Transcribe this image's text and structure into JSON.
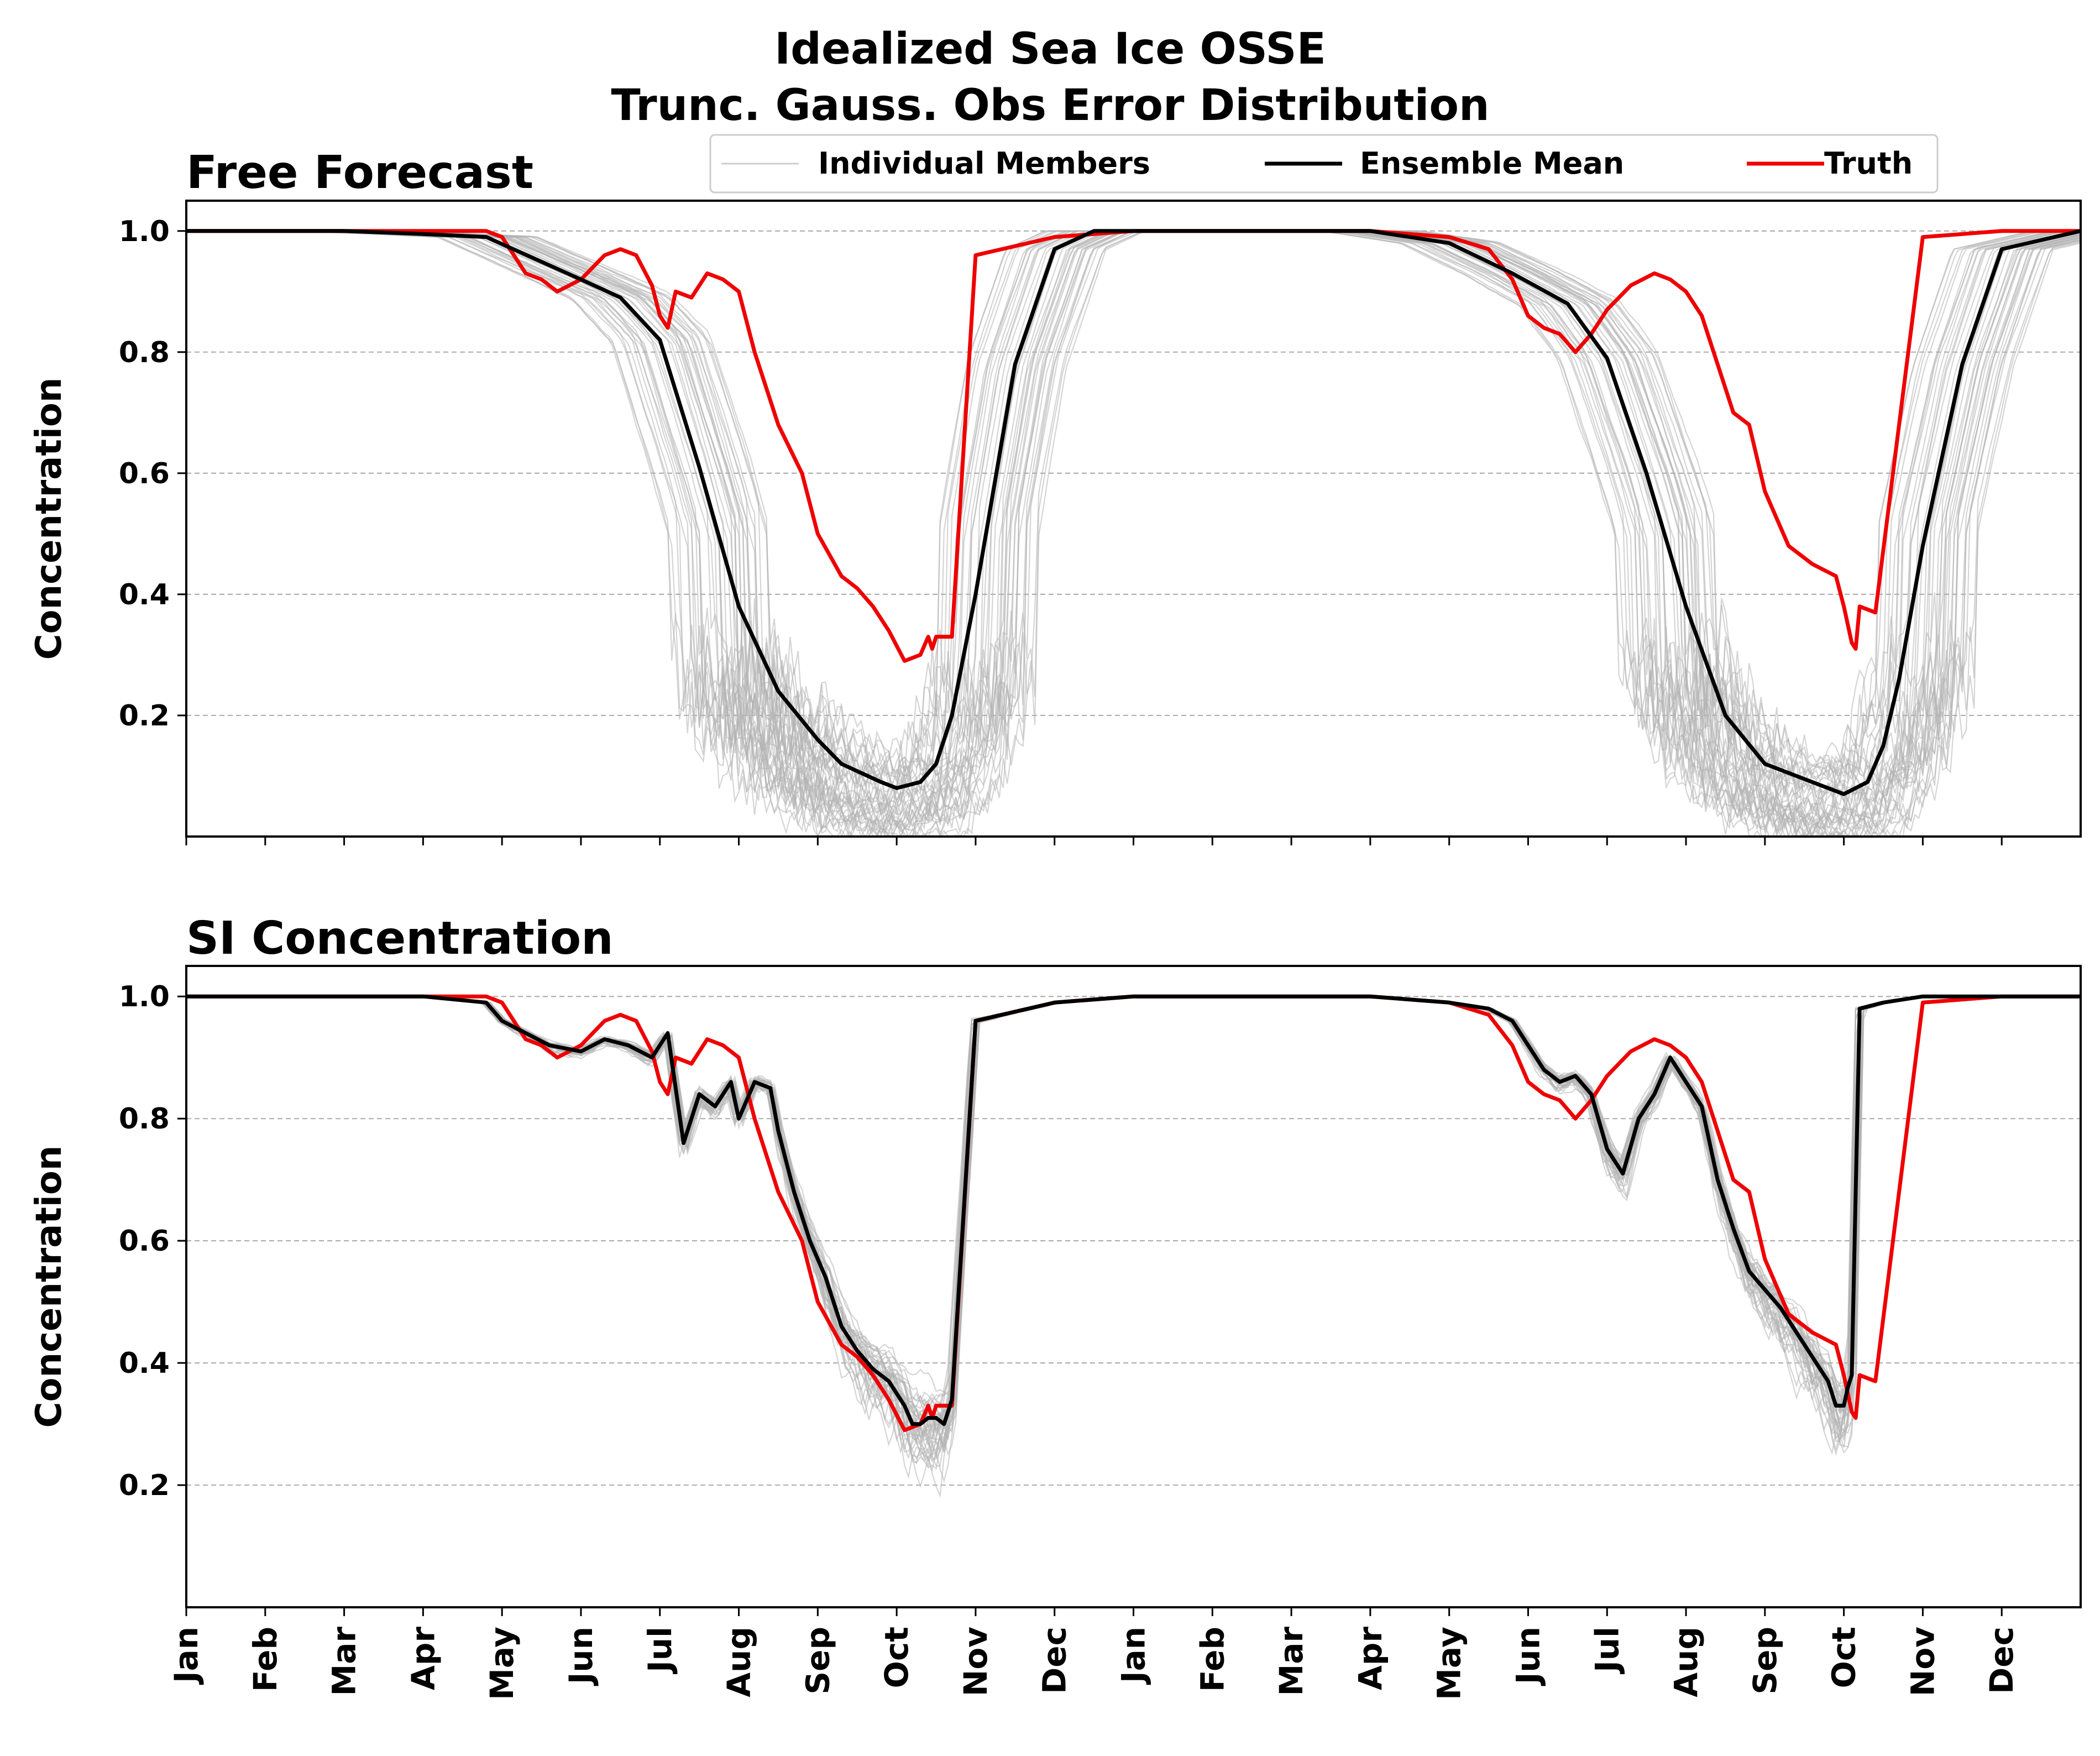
{
  "figure": {
    "title_line1": "Idealized Sea Ice OSSE",
    "title_line2": "Trunc. Gauss. Obs Error Distribution"
  },
  "legend": {
    "items": [
      {
        "label": "Individual Members",
        "color": "#b3b3b3"
      },
      {
        "label": "Ensemble Mean",
        "color": "#000000"
      },
      {
        "label": "Truth",
        "color": "#ee0000"
      }
    ]
  },
  "colors": {
    "members": "#b3b3b3",
    "mean": "#000000",
    "truth": "#ee0000",
    "grid": "#b0b0b0"
  },
  "chart_data": [
    {
      "type": "line",
      "title": "Free Forecast",
      "ylabel": "Concentration",
      "xlim": [
        0,
        24
      ],
      "ylim": [
        0.0,
        1.05
      ],
      "yticks": [
        0.2,
        0.4,
        0.6,
        0.8,
        1.0
      ],
      "ytick_labels": [
        "0.2",
        "0.4",
        "0.6",
        "0.8",
        "1.0"
      ],
      "grid": "y dashed",
      "legend_placement": "top-center",
      "series": [
        {
          "name": "Ensemble Mean",
          "x": [
            0,
            1,
            2,
            3,
            3.8,
            4.4,
            5,
            5.5,
            6,
            6.5,
            7,
            7.5,
            8,
            8.3,
            8.8,
            9,
            9.3,
            9.5,
            9.7,
            10,
            10.5,
            11,
            11.5,
            12,
            13,
            14,
            15,
            15.5,
            16,
            16.8,
            17.5,
            18,
            18.5,
            19,
            19.5,
            20,
            20.5,
            20.8,
            21,
            21.3,
            21.5,
            21.7,
            22,
            22.5,
            23,
            24
          ],
          "y": [
            1.0,
            1.0,
            1.0,
            0.995,
            0.99,
            0.955,
            0.92,
            0.89,
            0.82,
            0.61,
            0.38,
            0.24,
            0.16,
            0.12,
            0.09,
            0.08,
            0.09,
            0.12,
            0.2,
            0.4,
            0.78,
            0.97,
            1.0,
            1.0,
            1.0,
            1.0,
            1.0,
            0.99,
            0.98,
            0.93,
            0.88,
            0.79,
            0.6,
            0.38,
            0.2,
            0.12,
            0.095,
            0.08,
            0.07,
            0.09,
            0.15,
            0.26,
            0.48,
            0.78,
            0.97,
            1.0
          ]
        },
        {
          "name": "Truth",
          "x": [
            0,
            1,
            2,
            3,
            3.8,
            4.0,
            4.3,
            4.5,
            4.7,
            5.0,
            5.3,
            5.5,
            5.7,
            5.9,
            6.0,
            6.1,
            6.2,
            6.4,
            6.6,
            6.8,
            7.0,
            7.2,
            7.5,
            7.8,
            8.0,
            8.3,
            8.5,
            8.7,
            8.9,
            9.1,
            9.3,
            9.4,
            9.45,
            9.5,
            9.7,
            10,
            11,
            12,
            13,
            14,
            15,
            16,
            16.5,
            16.8,
            17.0,
            17.2,
            17.4,
            17.6,
            17.8,
            18.0,
            18.3,
            18.6,
            18.8,
            19.0,
            19.2,
            19.4,
            19.6,
            19.8,
            20.0,
            20.3,
            20.6,
            20.9,
            21.0,
            21.1,
            21.15,
            21.2,
            21.4,
            22,
            23,
            24
          ],
          "y": [
            1.0,
            1.0,
            1.0,
            1.0,
            1.0,
            0.99,
            0.93,
            0.92,
            0.9,
            0.92,
            0.96,
            0.97,
            0.96,
            0.91,
            0.86,
            0.84,
            0.9,
            0.89,
            0.93,
            0.92,
            0.9,
            0.8,
            0.68,
            0.6,
            0.5,
            0.43,
            0.41,
            0.38,
            0.34,
            0.29,
            0.3,
            0.33,
            0.31,
            0.33,
            0.33,
            0.96,
            0.99,
            1.0,
            1.0,
            1.0,
            1.0,
            0.99,
            0.97,
            0.92,
            0.86,
            0.84,
            0.83,
            0.8,
            0.83,
            0.87,
            0.91,
            0.93,
            0.92,
            0.9,
            0.86,
            0.78,
            0.7,
            0.68,
            0.57,
            0.48,
            0.45,
            0.43,
            0.38,
            0.32,
            0.31,
            0.38,
            0.37,
            0.99,
            1.0,
            1.0
          ]
        }
      ]
    },
    {
      "type": "line",
      "title": "SI Concentration",
      "ylabel": "Concentration",
      "xlim": [
        0,
        24
      ],
      "ylim": [
        0.0,
        1.05
      ],
      "yticks": [
        0.2,
        0.4,
        0.6,
        0.8,
        1.0
      ],
      "ytick_labels": [
        "0.2",
        "0.4",
        "0.6",
        "0.8",
        "1.0"
      ],
      "xtick_labels": [
        "Jan",
        "Feb",
        "Mar",
        "Apr",
        "May",
        "Jun",
        "Jul",
        "Aug",
        "Sep",
        "Oct",
        "Nov",
        "Dec",
        "Jan",
        "Feb",
        "Mar",
        "Apr",
        "May",
        "Jun",
        "Jul",
        "Aug",
        "Sep",
        "Oct",
        "Nov",
        "Dec"
      ],
      "grid": "y dashed",
      "series": [
        {
          "name": "Ensemble Mean",
          "x": [
            0,
            1,
            2,
            3,
            3.8,
            4.0,
            4.3,
            4.6,
            5.0,
            5.3,
            5.6,
            5.9,
            6.1,
            6.3,
            6.5,
            6.7,
            6.9,
            7.0,
            7.2,
            7.4,
            7.5,
            7.7,
            7.9,
            8.1,
            8.3,
            8.5,
            8.7,
            8.9,
            9.1,
            9.2,
            9.3,
            9.4,
            9.5,
            9.6,
            9.7,
            10,
            11,
            12,
            13,
            14,
            15,
            16,
            16.5,
            16.8,
            17.0,
            17.2,
            17.4,
            17.6,
            17.8,
            18.0,
            18.2,
            18.4,
            18.6,
            18.8,
            19.0,
            19.2,
            19.4,
            19.6,
            19.8,
            20.0,
            20.2,
            20.4,
            20.6,
            20.8,
            20.9,
            21.0,
            21.05,
            21.1,
            21.2,
            21.5,
            22,
            23,
            24
          ],
          "y": [
            1.0,
            1.0,
            1.0,
            1.0,
            0.99,
            0.96,
            0.94,
            0.92,
            0.91,
            0.93,
            0.92,
            0.9,
            0.94,
            0.76,
            0.84,
            0.82,
            0.86,
            0.8,
            0.86,
            0.85,
            0.78,
            0.68,
            0.6,
            0.54,
            0.46,
            0.42,
            0.39,
            0.37,
            0.33,
            0.3,
            0.3,
            0.31,
            0.31,
            0.3,
            0.34,
            0.96,
            0.99,
            1.0,
            1.0,
            1.0,
            1.0,
            0.99,
            0.98,
            0.96,
            0.92,
            0.88,
            0.86,
            0.87,
            0.84,
            0.75,
            0.71,
            0.8,
            0.84,
            0.9,
            0.86,
            0.82,
            0.7,
            0.62,
            0.55,
            0.52,
            0.49,
            0.45,
            0.41,
            0.37,
            0.33,
            0.33,
            0.36,
            0.38,
            0.98,
            0.99,
            1.0,
            1.0,
            1.0
          ]
        },
        {
          "name": "Truth",
          "x": [
            0,
            1,
            2,
            3,
            3.8,
            4.0,
            4.3,
            4.5,
            4.7,
            5.0,
            5.3,
            5.5,
            5.7,
            5.9,
            6.0,
            6.1,
            6.2,
            6.4,
            6.6,
            6.8,
            7.0,
            7.2,
            7.5,
            7.8,
            8.0,
            8.3,
            8.5,
            8.7,
            8.9,
            9.1,
            9.3,
            9.4,
            9.45,
            9.5,
            9.7,
            10,
            11,
            12,
            13,
            14,
            15,
            16,
            16.5,
            16.8,
            17.0,
            17.2,
            17.4,
            17.6,
            17.8,
            18.0,
            18.3,
            18.6,
            18.8,
            19.0,
            19.2,
            19.4,
            19.6,
            19.8,
            20.0,
            20.3,
            20.6,
            20.9,
            21.0,
            21.1,
            21.15,
            21.2,
            21.4,
            22,
            23,
            24
          ],
          "y": [
            1.0,
            1.0,
            1.0,
            1.0,
            1.0,
            0.99,
            0.93,
            0.92,
            0.9,
            0.92,
            0.96,
            0.97,
            0.96,
            0.91,
            0.86,
            0.84,
            0.9,
            0.89,
            0.93,
            0.92,
            0.9,
            0.8,
            0.68,
            0.6,
            0.5,
            0.43,
            0.41,
            0.38,
            0.34,
            0.29,
            0.3,
            0.33,
            0.31,
            0.33,
            0.33,
            0.96,
            0.99,
            1.0,
            1.0,
            1.0,
            1.0,
            0.99,
            0.97,
            0.92,
            0.86,
            0.84,
            0.83,
            0.8,
            0.83,
            0.87,
            0.91,
            0.93,
            0.92,
            0.9,
            0.86,
            0.78,
            0.7,
            0.68,
            0.57,
            0.48,
            0.45,
            0.43,
            0.38,
            0.32,
            0.31,
            0.38,
            0.37,
            0.99,
            1.0,
            1.0
          ]
        }
      ]
    }
  ]
}
